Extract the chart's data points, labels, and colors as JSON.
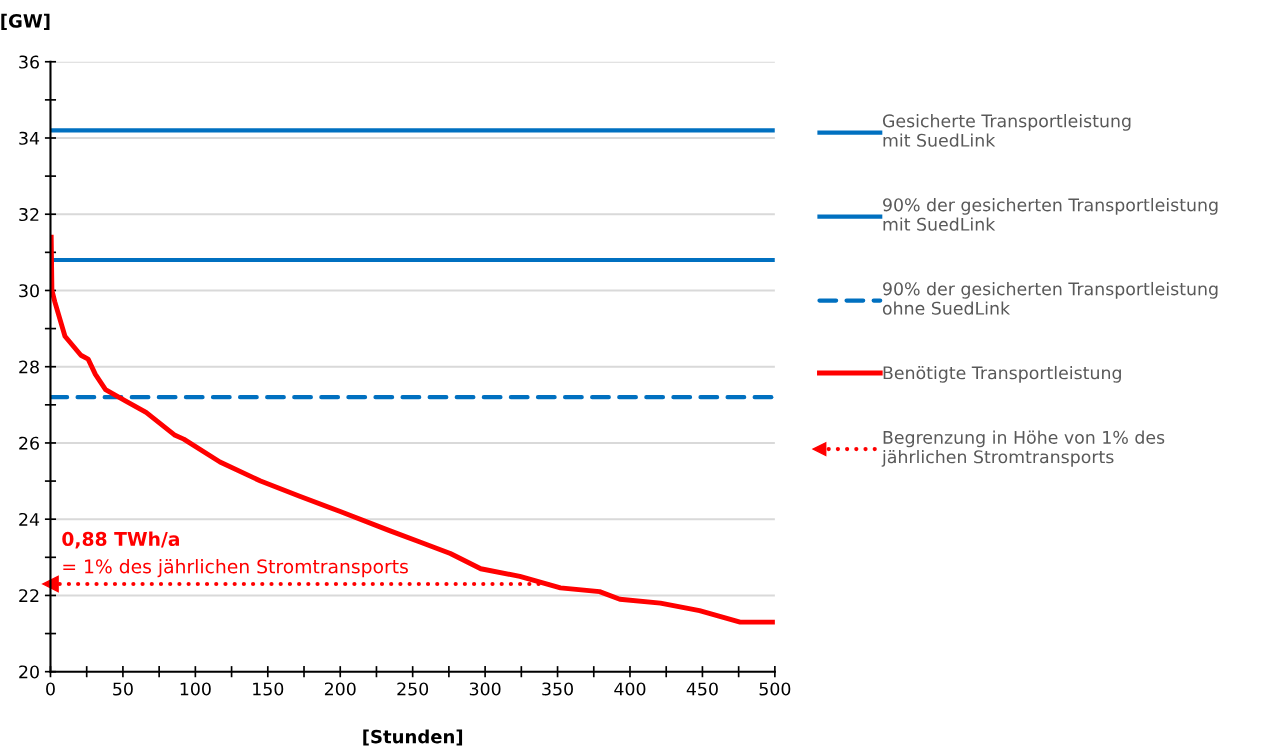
{
  "chart_data": {
    "type": "line",
    "ylabel": "[GW]",
    "xlabel": "[Stunden]",
    "xlim": [
      0,
      500
    ],
    "ylim": [
      20,
      36
    ],
    "xticks": [
      0,
      {
        "value": 25,
        "label": null
      },
      50,
      {
        "value": 75,
        "label": null
      },
      100,
      {
        "value": 125,
        "label": null
      },
      150,
      {
        "value": 175,
        "label": null
      },
      200,
      {
        "value": 225,
        "label": null
      },
      250,
      {
        "value": 275,
        "label": null
      },
      300,
      {
        "value": 325,
        "label": null
      },
      350,
      {
        "value": 375,
        "label": null
      },
      400,
      {
        "value": 425,
        "label": null
      },
      450,
      {
        "value": 475,
        "label": null
      },
      500
    ],
    "yticks": [
      20,
      {
        "value": 21,
        "label": null
      },
      22,
      {
        "value": 23,
        "label": null
      },
      24,
      {
        "value": 25,
        "label": null
      },
      26,
      {
        "value": 27,
        "label": null
      },
      28,
      {
        "value": 29,
        "label": null
      },
      30,
      {
        "value": 31,
        "label": null
      },
      32,
      {
        "value": 33,
        "label": null
      },
      34,
      {
        "value": 35,
        "label": null
      },
      36
    ],
    "grid": "y",
    "legend": "right",
    "series": [
      {
        "name": "Gesicherte Transportleistung\nmit SuedLink",
        "color": "#0070c0",
        "x": [
          0,
          500
        ],
        "values": [
          34.2,
          34.2
        ],
        "line_style": "solid"
      },
      {
        "name": "90% der gesicherten Transportleistung\nmit SuedLink",
        "color": "#0070c0",
        "x": [
          0,
          500
        ],
        "values": [
          30.8,
          30.8
        ],
        "line_style": "solid"
      },
      {
        "name": "90% der gesicherten Transportleistung\nohne SuedLink",
        "color": "#0070c0",
        "x": [
          0,
          500
        ],
        "values": [
          27.2,
          27.2
        ],
        "line_style": "dashed"
      },
      {
        "name": "Benötigte Transportleistung",
        "color": "#ff0000",
        "line_style": "solid",
        "x": [
          0.5,
          1,
          3,
          10,
          21,
          26,
          31,
          38,
          52,
          66,
          86,
          92,
          117,
          145,
          172,
          200,
          234,
          255,
          276,
          297,
          324,
          352,
          379,
          393,
          421,
          448,
          476,
          500
        ],
        "values": [
          31.4,
          30.0,
          29.7,
          28.8,
          28.3,
          28.2,
          27.8,
          27.4,
          27.1,
          26.8,
          26.2,
          26.1,
          25.5,
          25.0,
          24.6,
          24.2,
          23.7,
          23.4,
          23.1,
          22.7,
          22.5,
          22.2,
          22.1,
          21.9,
          21.8,
          21.6,
          21.3,
          21.3
        ]
      },
      {
        "name": "Begrenzung in Höhe von 1% des\njährlichen Stromtransports",
        "color": "#ff0000",
        "x": [
          0,
          345
        ],
        "values": [
          22.3,
          22.3
        ],
        "line_style": "dotted",
        "marker": "triangle"
      }
    ],
    "annotations": [
      "0,88 TWh/a",
      "= 1% des jährlichen Stromtransports"
    ]
  }
}
